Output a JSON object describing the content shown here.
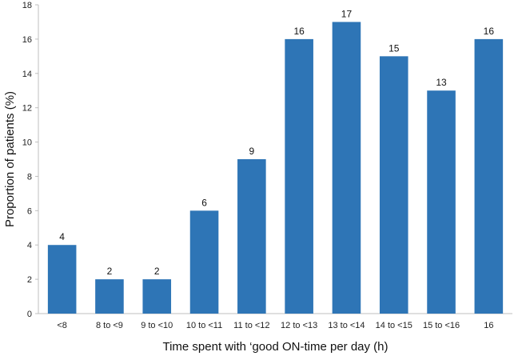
{
  "chart_data": {
    "type": "bar",
    "categories": [
      "<8",
      "8 to <9",
      "9 to <10",
      "10 to <11",
      "11 to <12",
      "12 to <13",
      "13 to <14",
      "14 to <15",
      "15 to <16",
      "16"
    ],
    "values": [
      4,
      2,
      2,
      6,
      9,
      16,
      17,
      15,
      13,
      16
    ],
    "data_labels": [
      "4",
      "2",
      "2",
      "6",
      "9",
      "16",
      "17",
      "15",
      "13",
      "16"
    ],
    "xlabel": "Time spent with ‘good ON-time per day (h)",
    "ylabel": "Proportion of patients (%)",
    "ylim": [
      0,
      18
    ],
    "yticks": [
      0,
      2,
      4,
      6,
      8,
      10,
      12,
      14,
      16,
      18
    ],
    "ytick_labels": [
      "0",
      "2",
      "4",
      "6",
      "8",
      "10",
      "12",
      "14",
      "16",
      "18"
    ],
    "grid": false,
    "legend": "none",
    "bar_color": "#2e75b6"
  }
}
